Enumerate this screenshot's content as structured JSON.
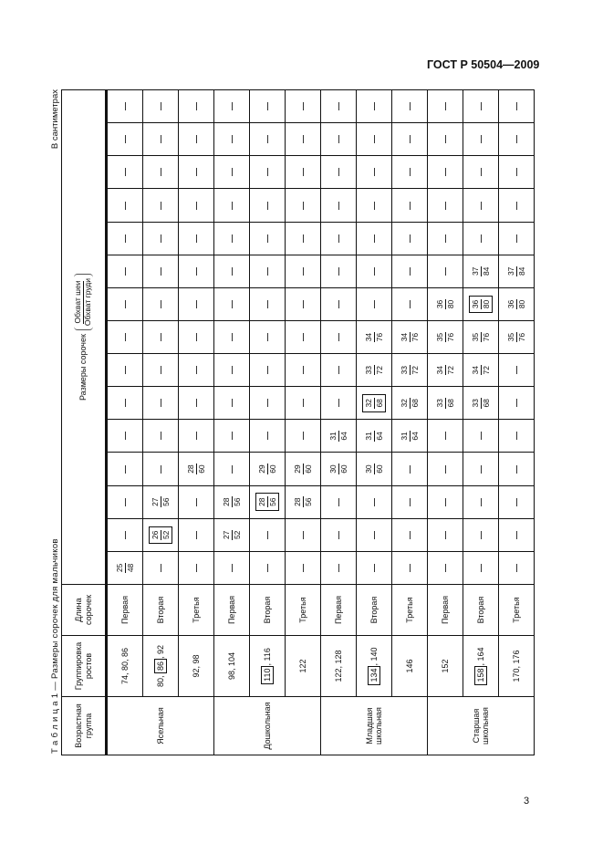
{
  "document": {
    "standard": "ГОСТ Р 50504—2009",
    "page_number": "3",
    "caption": "Т а б л и ц а 1 — Размеры сорочек для мальчиков",
    "units": "В сантиметрах"
  },
  "table": {
    "headers": {
      "age_group": "Возрастная группа",
      "height_group": "Группировка ростов",
      "length": "Длина сорочек",
      "sizes": "Размеры сорочек",
      "sizes_numerator": "Обхват шеи",
      "sizes_denominator": "Обхват груди"
    },
    "dash": "—",
    "rows": [
      {
        "group": "Ясельная",
        "heights": [
          "74",
          "80",
          "86"
        ],
        "boxed_height": null,
        "length": "Первая",
        "sizes": [
          [
            "25",
            "48"
          ],
          null,
          null,
          null,
          null,
          null,
          null,
          null,
          null,
          null,
          null,
          null,
          null,
          null,
          null
        ],
        "boxed_size": null
      },
      {
        "group": null,
        "heights": [
          "80",
          "86",
          "92"
        ],
        "boxed_height": 1,
        "length": "Вторая",
        "sizes": [
          null,
          [
            "26",
            "52"
          ],
          [
            "27",
            "56"
          ],
          null,
          null,
          null,
          null,
          null,
          null,
          null,
          null,
          null,
          null,
          null,
          null
        ],
        "boxed_size": 1
      },
      {
        "group": null,
        "heights": [
          "92",
          "98"
        ],
        "boxed_height": null,
        "length": "Третья",
        "sizes": [
          null,
          null,
          null,
          [
            "28",
            "60"
          ],
          null,
          null,
          null,
          null,
          null,
          null,
          null,
          null,
          null,
          null,
          null
        ],
        "boxed_size": null
      },
      {
        "group": "Дошкольная",
        "heights": [
          "98",
          "104"
        ],
        "boxed_height": null,
        "length": "Первая",
        "sizes": [
          null,
          [
            "27",
            "52"
          ],
          [
            "28",
            "56"
          ],
          null,
          null,
          null,
          null,
          null,
          null,
          null,
          null,
          null,
          null,
          null,
          null
        ],
        "boxed_size": null
      },
      {
        "group": null,
        "heights": [
          "110",
          "116"
        ],
        "boxed_height": 0,
        "length": "Вторая",
        "sizes": [
          null,
          null,
          [
            "28",
            "56"
          ],
          [
            "29",
            "60"
          ],
          null,
          null,
          null,
          null,
          null,
          null,
          null,
          null,
          null,
          null,
          null
        ],
        "boxed_size": 2
      },
      {
        "group": null,
        "heights": [
          "122"
        ],
        "boxed_height": null,
        "length": "Третья",
        "sizes": [
          null,
          null,
          [
            "28",
            "56"
          ],
          [
            "29",
            "60"
          ],
          null,
          null,
          null,
          null,
          null,
          null,
          null,
          null,
          null,
          null,
          null
        ],
        "boxed_size": null
      },
      {
        "group": "Младшая школьная",
        "heights": [
          "122",
          "128"
        ],
        "boxed_height": null,
        "length": "Первая",
        "sizes": [
          null,
          null,
          null,
          [
            "30",
            "60"
          ],
          [
            "31",
            "64"
          ],
          null,
          null,
          null,
          null,
          null,
          null,
          null,
          null,
          null,
          null
        ],
        "boxed_size": null
      },
      {
        "group": null,
        "heights": [
          "134",
          "140"
        ],
        "boxed_height": 0,
        "length": "Вторая",
        "sizes": [
          null,
          null,
          null,
          [
            "30",
            "60"
          ],
          [
            "31",
            "64"
          ],
          [
            "32",
            "68"
          ],
          [
            "33",
            "72"
          ],
          [
            "34",
            "76"
          ],
          null,
          null,
          null,
          null,
          null,
          null,
          null
        ],
        "boxed_size": 5
      },
      {
        "group": null,
        "heights": [
          "146"
        ],
        "boxed_height": null,
        "length": "Третья",
        "sizes": [
          null,
          null,
          null,
          null,
          [
            "31",
            "64"
          ],
          [
            "32",
            "68"
          ],
          [
            "33",
            "72"
          ],
          [
            "34",
            "76"
          ],
          null,
          null,
          null,
          null,
          null,
          null,
          null
        ],
        "boxed_size": null
      },
      {
        "group": "Старшая школьная",
        "heights": [
          "152"
        ],
        "boxed_height": null,
        "length": "Первая",
        "sizes": [
          null,
          null,
          null,
          null,
          null,
          [
            "33",
            "68"
          ],
          [
            "34",
            "72"
          ],
          [
            "35",
            "76"
          ],
          [
            "36",
            "80"
          ],
          null,
          null,
          null,
          null,
          null,
          null
        ],
        "boxed_size": null
      },
      {
        "group": null,
        "heights": [
          "158",
          "164"
        ],
        "boxed_height": 0,
        "length": "Вторая",
        "sizes": [
          null,
          null,
          null,
          null,
          null,
          [
            "33",
            "68"
          ],
          [
            "34",
            "72"
          ],
          [
            "35",
            "76"
          ],
          [
            "36",
            "80"
          ],
          [
            "37",
            "84"
          ],
          null,
          null,
          null,
          null,
          null
        ],
        "boxed_size": 8
      },
      {
        "group": null,
        "heights": [
          "170",
          "176"
        ],
        "boxed_height": null,
        "length": "Третья",
        "sizes": [
          null,
          null,
          null,
          null,
          null,
          null,
          null,
          [
            "35",
            "76"
          ],
          [
            "36",
            "80"
          ],
          [
            "37",
            "84"
          ],
          null,
          null,
          null,
          null,
          null
        ],
        "boxed_size": null
      }
    ]
  }
}
